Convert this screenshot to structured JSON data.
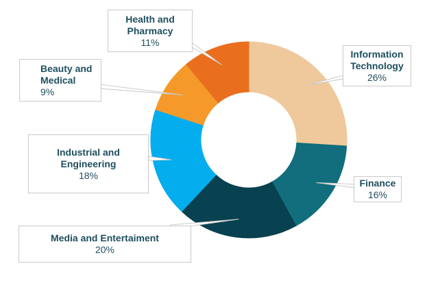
{
  "chart_data": {
    "type": "pie",
    "donut": true,
    "slices": [
      {
        "label": "Information Technology",
        "display_lines": [
          "Information",
          "Technology"
        ],
        "value": 26,
        "value_label": "26%",
        "color": "#efc99b"
      },
      {
        "label": "Finance",
        "display_lines": [
          "Finance"
        ],
        "value": 16,
        "value_label": "16%",
        "color": "#126e7c"
      },
      {
        "label": "Media and Entertaiment",
        "display_lines": [
          "Media and Entertaiment"
        ],
        "value": 20,
        "value_label": "20%",
        "color": "#08414f"
      },
      {
        "label": "Industrial and Engineering",
        "display_lines": [
          "Industrial and",
          "Engineering"
        ],
        "value": 18,
        "value_label": "18%",
        "color": "#04adee"
      },
      {
        "label": "Beauty and Medical",
        "display_lines": [
          "Beauty and",
          "Medical"
        ],
        "value": 9,
        "value_label": "9%",
        "color": "#f59a2a"
      },
      {
        "label": "Health and Pharmacy",
        "display_lines": [
          "Health and",
          "Pharmacy"
        ],
        "value": 11,
        "value_label": "11%",
        "color": "#e96f1e"
      }
    ]
  }
}
